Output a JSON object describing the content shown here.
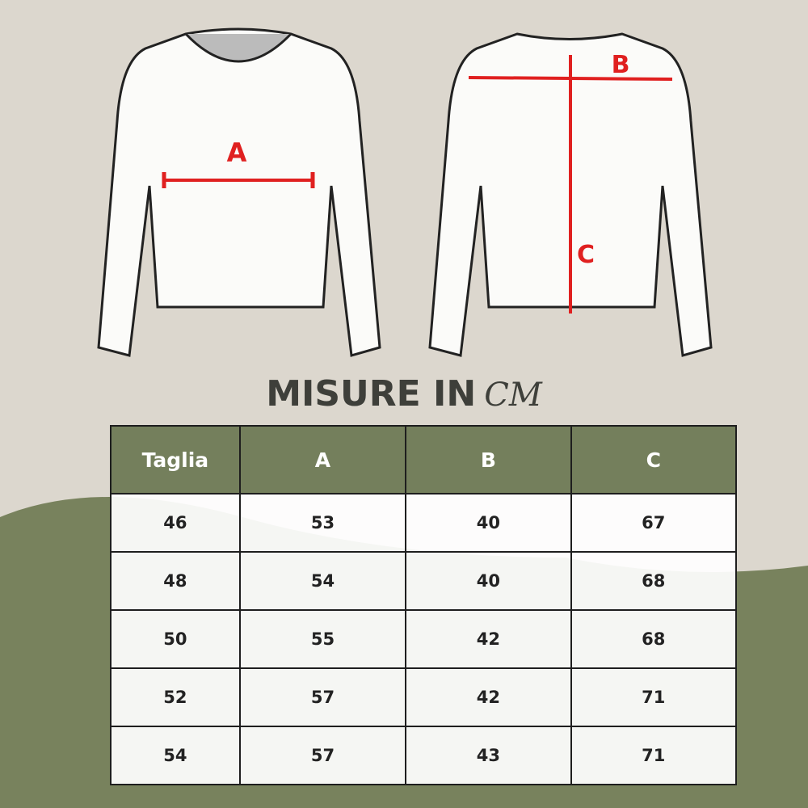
{
  "diagram": {
    "labels": {
      "chest": "A",
      "shoulder": "B",
      "length": "C"
    },
    "measure_color": "#e02020"
  },
  "title": {
    "main": "MISURE IN",
    "unit": "CM"
  },
  "colors": {
    "background": "#dcd7ce",
    "accent_green": "#747f5c"
  },
  "table": {
    "headers": [
      "Taglia",
      "A",
      "B",
      "C"
    ],
    "rows": [
      [
        "46",
        "53",
        "40",
        "67"
      ],
      [
        "48",
        "54",
        "40",
        "68"
      ],
      [
        "50",
        "55",
        "42",
        "68"
      ],
      [
        "52",
        "57",
        "42",
        "71"
      ],
      [
        "54",
        "57",
        "43",
        "71"
      ]
    ]
  }
}
